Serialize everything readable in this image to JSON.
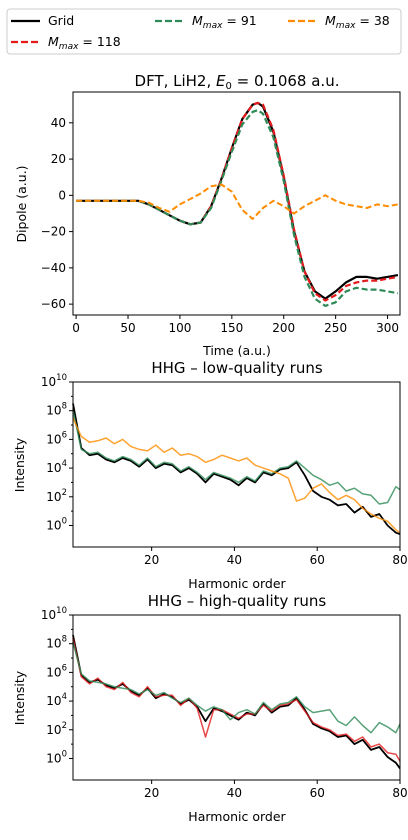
{
  "legend": {
    "entries": [
      {
        "label": "Grid",
        "color": "#000000",
        "dash": "solid"
      },
      {
        "label": "M_max = 118",
        "color": "#e41a1c",
        "dash": "dashed"
      },
      {
        "label": "M_max = 91",
        "color": "#2e8b57",
        "dash": "dashed"
      },
      {
        "label": "M_max = 38",
        "color": "#ff8c00",
        "dash": "dashed"
      }
    ],
    "placement": "top, 3 columns"
  },
  "chart_data": [
    {
      "type": "line",
      "title": "DFT, LiH2, E_0 = 0.1068 a.u.",
      "xlabel": "Time (a.u.)",
      "ylabel": "Dipole (a.u.)",
      "xlim": [
        -3,
        312
      ],
      "ylim": [
        -66,
        57
      ],
      "xticks": [
        0,
        50,
        100,
        150,
        200,
        250,
        300
      ],
      "yticks": [
        40,
        20,
        0,
        -20,
        -40,
        -60
      ],
      "grid": false,
      "series": [
        {
          "name": "Grid",
          "color": "#000000",
          "dash": "solid",
          "x": [
            0,
            25,
            50,
            60,
            70,
            80,
            90,
            100,
            110,
            120,
            130,
            140,
            150,
            160,
            170,
            175,
            180,
            190,
            200,
            210,
            220,
            230,
            240,
            250,
            260,
            270,
            280,
            290,
            300,
            310
          ],
          "y": [
            -3,
            -3,
            -3,
            -3,
            -5,
            -8,
            -11,
            -14,
            -16,
            -15,
            -6,
            9,
            26,
            42,
            50,
            51,
            49,
            35,
            10,
            -20,
            -42,
            -53,
            -57,
            -53,
            -48,
            -45,
            -45,
            -46,
            -45,
            -44
          ]
        },
        {
          "name": "M_max = 118",
          "color": "#e41a1c",
          "dash": "dashed",
          "x": [
            0,
            25,
            50,
            60,
            70,
            80,
            90,
            100,
            110,
            120,
            130,
            140,
            150,
            160,
            170,
            175,
            180,
            190,
            200,
            210,
            220,
            230,
            240,
            250,
            260,
            270,
            280,
            290,
            300,
            310
          ],
          "y": [
            -3,
            -3,
            -3,
            -3,
            -5,
            -8,
            -11,
            -14,
            -16,
            -15,
            -6,
            9,
            26,
            42,
            50,
            51,
            50,
            36,
            11,
            -19,
            -42,
            -54,
            -58,
            -55,
            -50,
            -48,
            -47,
            -47,
            -46,
            -45
          ]
        },
        {
          "name": "M_max = 91",
          "color": "#2e8b57",
          "dash": "dashed",
          "x": [
            0,
            25,
            50,
            60,
            70,
            80,
            90,
            100,
            110,
            120,
            130,
            140,
            150,
            160,
            170,
            175,
            180,
            190,
            200,
            210,
            220,
            230,
            240,
            250,
            260,
            270,
            280,
            290,
            300,
            310
          ],
          "y": [
            -3,
            -3,
            -3,
            -3,
            -5,
            -8,
            -11,
            -14,
            -16,
            -15,
            -7,
            8,
            24,
            39,
            46,
            47,
            45,
            32,
            8,
            -22,
            -45,
            -57,
            -61,
            -59,
            -53,
            -51,
            -52,
            -52,
            -53,
            -54
          ]
        },
        {
          "name": "M_max = 38",
          "color": "#ff8c00",
          "dash": "dashed",
          "x": [
            0,
            25,
            50,
            60,
            70,
            80,
            90,
            100,
            110,
            120,
            130,
            140,
            150,
            160,
            170,
            180,
            190,
            200,
            210,
            220,
            230,
            240,
            250,
            260,
            270,
            280,
            290,
            300,
            310
          ],
          "y": [
            -3,
            -3,
            -3,
            -3,
            -4,
            -7,
            -9,
            -5,
            -2,
            1,
            5,
            6,
            2,
            -8,
            -13,
            -7,
            -3,
            -6,
            -10,
            -6,
            -3,
            0,
            -3,
            -5,
            -6,
            -7,
            -5,
            -6,
            -5
          ]
        }
      ]
    },
    {
      "type": "line",
      "title": "HHG – low-quality runs",
      "xlabel": "Harmonic order",
      "ylabel": "Intensity",
      "yscale": "log",
      "xlim": [
        1,
        80
      ],
      "ylim_log10": [
        -1.5,
        10
      ],
      "xticks": [
        20,
        40,
        60,
        80
      ],
      "ytick_labels": [
        "10^0",
        "10^2",
        "10^4",
        "10^6",
        "10^8",
        "10^10"
      ],
      "grid": false,
      "series": [
        {
          "name": "Grid",
          "color": "#000000",
          "x": [
            1,
            3,
            5,
            7,
            9,
            11,
            13,
            15,
            17,
            19,
            21,
            23,
            25,
            27,
            29,
            31,
            33,
            35,
            37,
            39,
            41,
            43,
            45,
            47,
            49,
            51,
            53,
            55,
            57,
            59,
            61,
            63,
            65,
            67,
            69,
            71,
            73,
            75,
            77,
            79,
            80
          ],
          "log10_y": [
            8.5,
            5.4,
            4.9,
            5.0,
            4.6,
            4.4,
            4.7,
            4.5,
            4.1,
            4.6,
            4.0,
            4.3,
            4.2,
            3.7,
            4.0,
            3.6,
            3.0,
            3.6,
            3.4,
            3.2,
            2.8,
            3.3,
            3.0,
            3.7,
            3.5,
            3.9,
            4.0,
            4.4,
            3.5,
            2.4,
            2.0,
            1.8,
            1.4,
            1.5,
            0.9,
            1.3,
            0.6,
            0.8,
            0.0,
            -0.5,
            -0.6
          ]
        },
        {
          "name": "M_max = 91",
          "color": "#2e8b57",
          "x": [
            1,
            3,
            5,
            7,
            9,
            11,
            13,
            15,
            17,
            19,
            21,
            23,
            25,
            27,
            29,
            31,
            33,
            35,
            37,
            39,
            41,
            43,
            45,
            47,
            49,
            51,
            53,
            55,
            57,
            59,
            61,
            63,
            65,
            67,
            69,
            71,
            73,
            75,
            77,
            79,
            80
          ],
          "log10_y": [
            8.0,
            5.3,
            5.0,
            5.1,
            4.7,
            4.5,
            4.8,
            4.6,
            4.2,
            4.7,
            4.1,
            4.4,
            4.3,
            3.8,
            4.1,
            3.7,
            3.2,
            3.7,
            3.5,
            3.3,
            3.0,
            3.4,
            3.1,
            3.8,
            3.6,
            4.0,
            4.1,
            4.5,
            4.0,
            3.5,
            3.2,
            2.8,
            3.0,
            2.4,
            2.6,
            2.2,
            2.1,
            1.5,
            1.6,
            2.7,
            2.5
          ]
        },
        {
          "name": "M_max = 38",
          "color": "#ff8c00",
          "x": [
            1,
            3,
            5,
            7,
            9,
            11,
            13,
            15,
            17,
            19,
            21,
            23,
            25,
            27,
            29,
            31,
            33,
            35,
            37,
            39,
            41,
            43,
            45,
            47,
            49,
            51,
            53,
            55,
            57,
            59,
            61,
            63,
            65,
            67,
            69,
            71,
            73,
            75,
            77,
            79,
            80
          ],
          "log10_y": [
            7.5,
            6.2,
            5.8,
            5.9,
            6.1,
            5.7,
            6.0,
            5.5,
            5.3,
            5.2,
            5.6,
            5.1,
            5.4,
            4.9,
            5.0,
            4.8,
            4.4,
            4.6,
            4.9,
            4.7,
            4.5,
            4.7,
            4.2,
            4.0,
            3.8,
            3.6,
            3.3,
            1.7,
            1.9,
            2.6,
            2.9,
            2.3,
            1.8,
            2.1,
            1.8,
            1.2,
            0.8,
            0.5,
            0.3,
            -0.3,
            -0.5
          ]
        }
      ]
    },
    {
      "type": "line",
      "title": "HHG – high-quality runs",
      "xlabel": "Harmonic order",
      "ylabel": "Intensity",
      "yscale": "log",
      "xlim": [
        1,
        80
      ],
      "ylim_log10": [
        -1.5,
        10
      ],
      "xticks": [
        20,
        40,
        60,
        80
      ],
      "ytick_labels": [
        "10^0",
        "10^2",
        "10^4",
        "10^6",
        "10^8",
        "10^10"
      ],
      "grid": false,
      "series": [
        {
          "name": "Grid",
          "color": "#000000",
          "x": [
            1,
            3,
            5,
            7,
            9,
            11,
            13,
            15,
            17,
            19,
            21,
            23,
            25,
            27,
            29,
            31,
            33,
            35,
            37,
            39,
            41,
            43,
            45,
            47,
            49,
            51,
            53,
            55,
            57,
            59,
            61,
            63,
            65,
            67,
            69,
            71,
            73,
            75,
            77,
            79,
            80
          ],
          "log10_y": [
            8.6,
            5.8,
            5.3,
            5.5,
            5.1,
            4.9,
            5.2,
            4.7,
            4.4,
            4.9,
            4.2,
            4.5,
            4.3,
            3.8,
            4.1,
            3.6,
            2.6,
            3.5,
            3.3,
            3.0,
            2.7,
            3.2,
            3.0,
            3.8,
            3.2,
            3.6,
            3.7,
            4.2,
            3.4,
            2.4,
            2.1,
            1.9,
            1.5,
            1.6,
            1.0,
            1.3,
            0.6,
            0.8,
            0.1,
            -0.3,
            -0.7
          ]
        },
        {
          "name": "M_max = 118",
          "color": "#e41a1c",
          "x": [
            1,
            3,
            5,
            7,
            9,
            11,
            13,
            15,
            17,
            19,
            21,
            23,
            25,
            27,
            29,
            31,
            33,
            35,
            37,
            39,
            41,
            43,
            45,
            47,
            49,
            51,
            53,
            55,
            57,
            59,
            61,
            63,
            65,
            67,
            69,
            71,
            73,
            75,
            77,
            79,
            80
          ],
          "log10_y": [
            8.4,
            5.7,
            5.2,
            5.6,
            5.0,
            4.8,
            5.3,
            4.6,
            4.3,
            5.0,
            4.3,
            4.4,
            4.4,
            3.7,
            4.2,
            3.5,
            1.5,
            3.4,
            3.4,
            3.1,
            2.8,
            3.1,
            3.1,
            3.7,
            3.3,
            3.7,
            3.8,
            4.1,
            3.3,
            2.5,
            2.2,
            2.0,
            1.6,
            1.7,
            1.2,
            1.5,
            0.8,
            1.0,
            0.4,
            0.3,
            -0.2
          ]
        },
        {
          "name": "M_max = 91",
          "color": "#2e8b57",
          "x": [
            1,
            3,
            5,
            7,
            9,
            11,
            13,
            15,
            17,
            19,
            21,
            23,
            25,
            27,
            29,
            31,
            33,
            35,
            37,
            39,
            41,
            43,
            45,
            47,
            49,
            51,
            53,
            55,
            57,
            59,
            61,
            63,
            65,
            67,
            69,
            71,
            73,
            75,
            77,
            79,
            80
          ],
          "log10_y": [
            8.1,
            5.9,
            5.4,
            5.3,
            5.2,
            5.0,
            4.9,
            4.8,
            4.5,
            4.8,
            4.4,
            4.6,
            4.2,
            3.9,
            4.2,
            3.7,
            3.3,
            3.6,
            3.4,
            2.7,
            3.2,
            3.4,
            3.1,
            3.9,
            3.4,
            3.8,
            3.9,
            4.3,
            3.6,
            3.2,
            3.3,
            3.4,
            2.6,
            2.3,
            2.9,
            2.3,
            1.8,
            2.5,
            2.2,
            1.8,
            2.4
          ]
        }
      ]
    }
  ]
}
